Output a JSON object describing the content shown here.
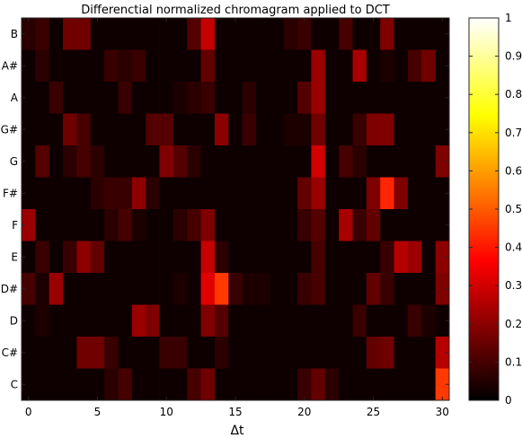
{
  "chart_data": {
    "type": "heatmap",
    "title": "Differenctial normalized chromagram applied to DCT",
    "xlabel": "Δt",
    "ylabel": "",
    "xlim": [
      0,
      30
    ],
    "x_ticks": [
      0,
      5,
      10,
      15,
      20,
      25,
      30
    ],
    "rows": [
      "B",
      "A#",
      "A",
      "G#",
      "G",
      "F#",
      "F",
      "E",
      "D#",
      "D",
      "C#",
      "C"
    ],
    "columns": [
      0,
      1,
      2,
      3,
      4,
      5,
      6,
      7,
      8,
      9,
      10,
      11,
      12,
      13,
      14,
      15,
      16,
      17,
      18,
      19,
      20,
      21,
      22,
      23,
      24,
      25,
      26,
      27,
      28,
      29,
      30
    ],
    "colormap": "hot",
    "clim": [
      0,
      1
    ],
    "colorbar_ticks": [
      0,
      0.1,
      0.2,
      0.3,
      0.4,
      0.5,
      0.6,
      0.7,
      0.8,
      0.9,
      1
    ],
    "values": [
      [
        0.06,
        0.08,
        0.02,
        0.16,
        0.16,
        0.02,
        0.02,
        0.02,
        0.02,
        0.02,
        0.02,
        0.02,
        0.12,
        0.28,
        0.02,
        0.02,
        0.02,
        0.02,
        0.02,
        0.06,
        0.08,
        0.02,
        0.02,
        0.1,
        0.02,
        0.02,
        0.18,
        0.02,
        0.02,
        0.02,
        0.02
      ],
      [
        0.02,
        0.06,
        0.02,
        0.02,
        0.02,
        0.02,
        0.08,
        0.06,
        0.08,
        0.02,
        0.02,
        0.02,
        0.02,
        0.14,
        0.02,
        0.02,
        0.02,
        0.02,
        0.02,
        0.02,
        0.02,
        0.22,
        0.02,
        0.02,
        0.24,
        0.02,
        0.04,
        0.02,
        0.1,
        0.16,
        0.02
      ],
      [
        0.02,
        0.02,
        0.08,
        0.02,
        0.02,
        0.02,
        0.02,
        0.08,
        0.02,
        0.02,
        0.02,
        0.04,
        0.06,
        0.08,
        0.02,
        0.02,
        0.06,
        0.02,
        0.02,
        0.02,
        0.12,
        0.22,
        0.02,
        0.02,
        0.02,
        0.02,
        0.02,
        0.02,
        0.02,
        0.02,
        0.02
      ],
      [
        0.02,
        0.02,
        0.02,
        0.16,
        0.1,
        0.02,
        0.02,
        0.02,
        0.02,
        0.12,
        0.12,
        0.02,
        0.02,
        0.02,
        0.2,
        0.02,
        0.08,
        0.02,
        0.02,
        0.04,
        0.04,
        0.16,
        0.02,
        0.02,
        0.08,
        0.18,
        0.18,
        0.02,
        0.02,
        0.02,
        0.02
      ],
      [
        0.02,
        0.12,
        0.02,
        0.06,
        0.1,
        0.06,
        0.02,
        0.02,
        0.02,
        0.02,
        0.18,
        0.12,
        0.06,
        0.02,
        0.02,
        0.02,
        0.02,
        0.02,
        0.02,
        0.02,
        0.02,
        0.3,
        0.02,
        0.1,
        0.06,
        0.02,
        0.02,
        0.02,
        0.02,
        0.02,
        0.18
      ],
      [
        0.02,
        0.02,
        0.02,
        0.02,
        0.02,
        0.06,
        0.08,
        0.08,
        0.2,
        0.06,
        0.02,
        0.02,
        0.02,
        0.02,
        0.02,
        0.02,
        0.02,
        0.02,
        0.02,
        0.02,
        0.14,
        0.22,
        0.02,
        0.02,
        0.02,
        0.18,
        0.42,
        0.18,
        0.02,
        0.02,
        0.02
      ],
      [
        0.22,
        0.02,
        0.02,
        0.02,
        0.02,
        0.02,
        0.06,
        0.1,
        0.04,
        0.02,
        0.02,
        0.06,
        0.1,
        0.18,
        0.02,
        0.02,
        0.02,
        0.02,
        0.02,
        0.02,
        0.08,
        0.12,
        0.02,
        0.24,
        0.08,
        0.14,
        0.02,
        0.02,
        0.02,
        0.02,
        0.02
      ],
      [
        0.02,
        0.08,
        0.02,
        0.08,
        0.2,
        0.14,
        0.02,
        0.02,
        0.02,
        0.02,
        0.02,
        0.02,
        0.02,
        0.28,
        0.06,
        0.02,
        0.02,
        0.02,
        0.02,
        0.02,
        0.02,
        0.1,
        0.02,
        0.02,
        0.02,
        0.02,
        0.08,
        0.26,
        0.22,
        0.02,
        0.2
      ],
      [
        0.1,
        0.04,
        0.22,
        0.02,
        0.02,
        0.02,
        0.02,
        0.02,
        0.02,
        0.02,
        0.02,
        0.04,
        0.02,
        0.32,
        0.45,
        0.08,
        0.04,
        0.04,
        0.02,
        0.02,
        0.08,
        0.1,
        0.02,
        0.02,
        0.02,
        0.14,
        0.08,
        0.02,
        0.02,
        0.02,
        0.18
      ],
      [
        0.02,
        0.04,
        0.02,
        0.02,
        0.02,
        0.02,
        0.02,
        0.02,
        0.22,
        0.18,
        0.02,
        0.02,
        0.02,
        0.18,
        0.12,
        0.02,
        0.02,
        0.02,
        0.02,
        0.02,
        0.02,
        0.02,
        0.02,
        0.02,
        0.08,
        0.02,
        0.02,
        0.02,
        0.08,
        0.04,
        0.02
      ],
      [
        0.02,
        0.02,
        0.02,
        0.02,
        0.16,
        0.16,
        0.08,
        0.02,
        0.02,
        0.02,
        0.08,
        0.08,
        0.02,
        0.02,
        0.06,
        0.02,
        0.02,
        0.02,
        0.02,
        0.02,
        0.02,
        0.02,
        0.02,
        0.02,
        0.02,
        0.14,
        0.16,
        0.02,
        0.02,
        0.02,
        0.26
      ],
      [
        0.02,
        0.02,
        0.02,
        0.02,
        0.02,
        0.02,
        0.06,
        0.1,
        0.02,
        0.02,
        0.02,
        0.02,
        0.1,
        0.16,
        0.02,
        0.02,
        0.02,
        0.02,
        0.02,
        0.02,
        0.08,
        0.14,
        0.06,
        0.02,
        0.02,
        0.02,
        0.02,
        0.02,
        0.02,
        0.02,
        0.45
      ]
    ]
  }
}
